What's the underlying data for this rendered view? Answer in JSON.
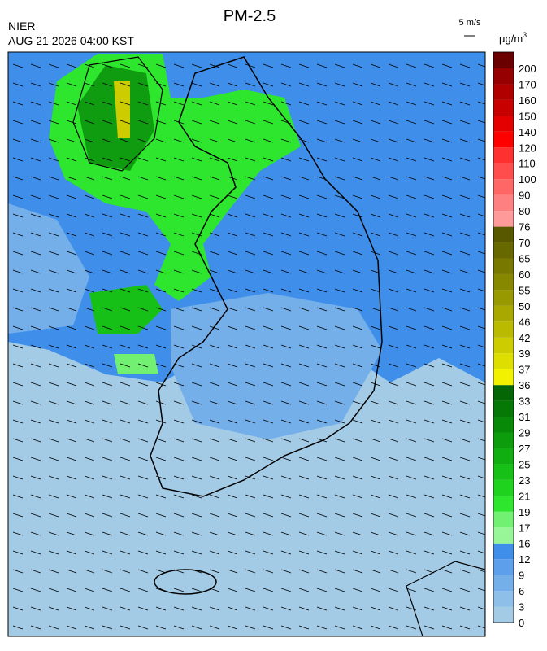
{
  "title": "PM-2.5",
  "source": "NIER",
  "timestamp": "AUG 21 2026 04:00 KST",
  "wind_scale": "5 m/s",
  "unit": {
    "base": "μg/m",
    "sup": "3"
  },
  "colorbar": {
    "levels": [
      0,
      3,
      6,
      9,
      12,
      16,
      17,
      19,
      21,
      23,
      25,
      27,
      29,
      31,
      33,
      36,
      37,
      39,
      42,
      46,
      50,
      55,
      60,
      65,
      70,
      76,
      80,
      90,
      100,
      110,
      120,
      140,
      150,
      160,
      170,
      200
    ],
    "colors": [
      "#a3cbe6",
      "#8dbfe9",
      "#74afea",
      "#5d9feb",
      "#3f8fea",
      "#98f598",
      "#72f072",
      "#2ee62e",
      "#1ed21e",
      "#16c016",
      "#10ae10",
      "#0c9c0c",
      "#088a08",
      "#067806",
      "#046604",
      "#f2f200",
      "#dede00",
      "#cccc00",
      "#baba00",
      "#a8a800",
      "#989800",
      "#888800",
      "#787800",
      "#686800",
      "#585800",
      "#ff9a9a",
      "#ff8080",
      "#ff6666",
      "#ff4d4d",
      "#ff3030",
      "#ff0000",
      "#e40000",
      "#c80000",
      "#b00000",
      "#960000",
      "#6a0000"
    ]
  }
}
